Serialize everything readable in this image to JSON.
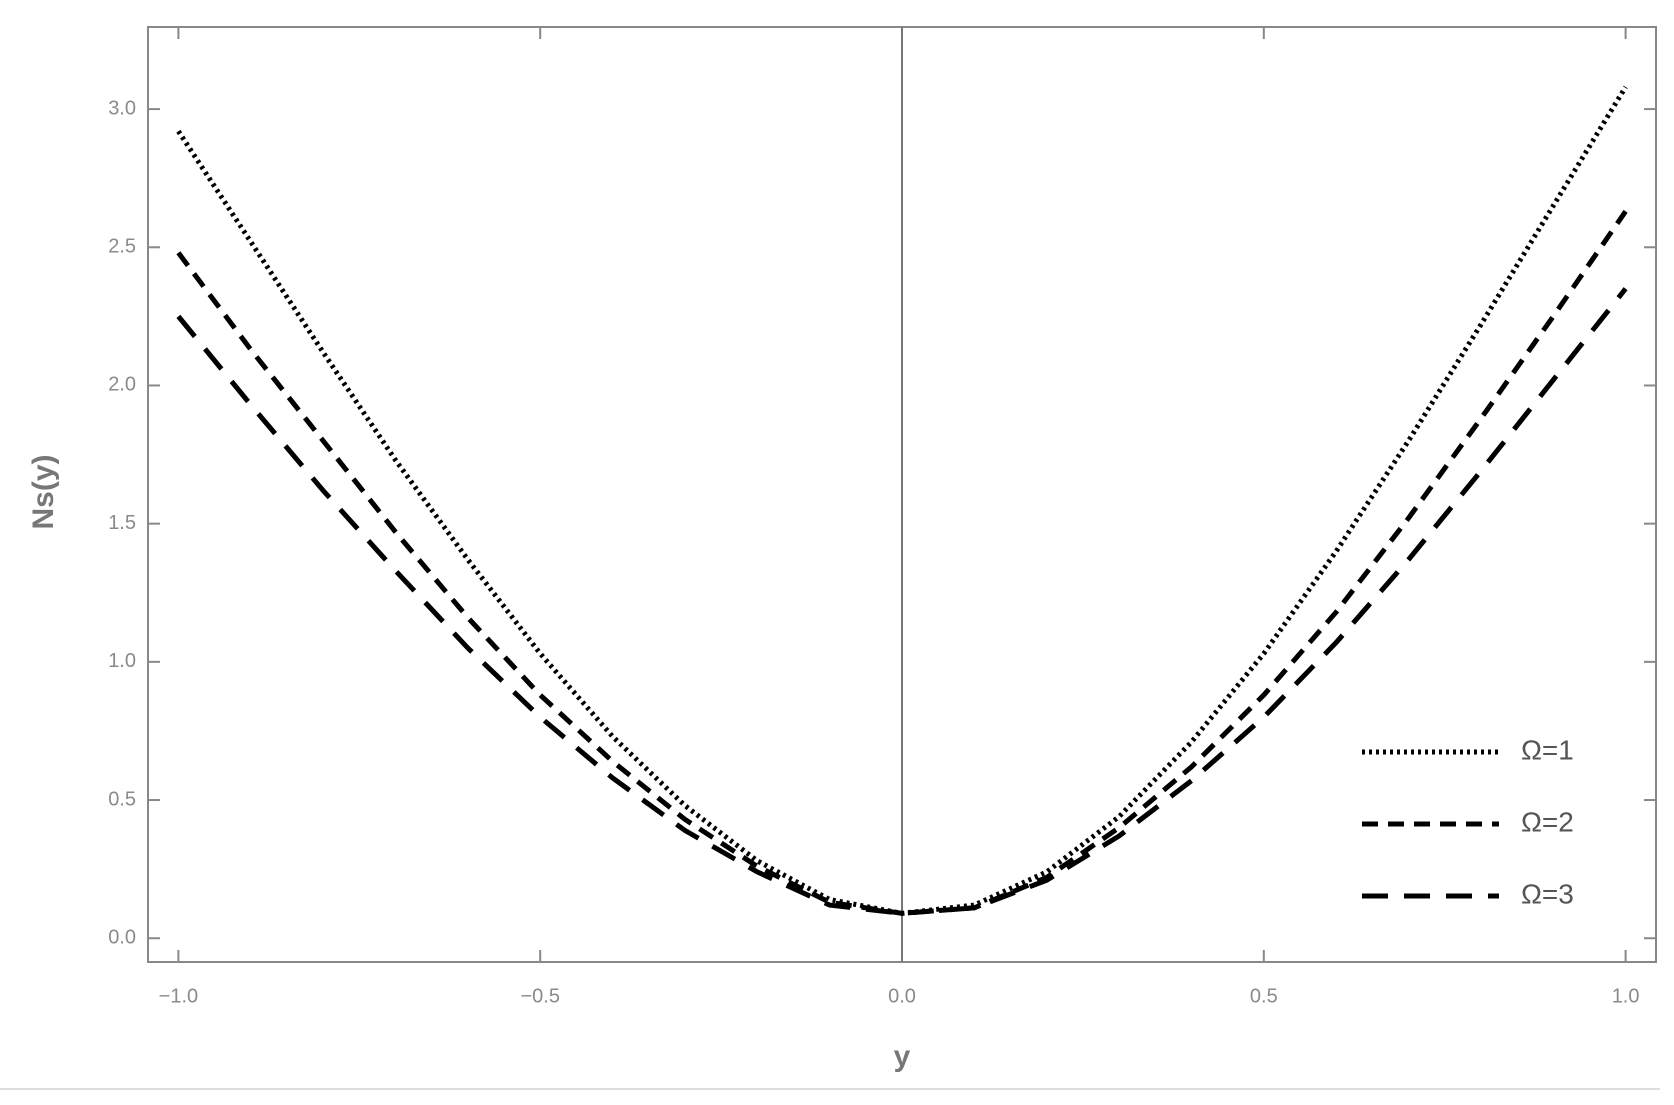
{
  "chart_data": {
    "type": "line",
    "x_label": "y",
    "y_label": "Ns(y)",
    "x": [
      -1.0,
      -0.9,
      -0.8,
      -0.7,
      -0.6,
      -0.5,
      -0.4,
      -0.3,
      -0.2,
      -0.1,
      0.0,
      0.1,
      0.2,
      0.3,
      0.4,
      0.5,
      0.6,
      0.7,
      0.8,
      0.9,
      1.0
    ],
    "series": [
      {
        "name": "Ω=1",
        "color": "#000000",
        "dash": "dotted",
        "values": [
          2.92,
          2.52,
          2.12,
          1.73,
          1.37,
          1.03,
          0.73,
          0.48,
          0.28,
          0.14,
          0.09,
          0.12,
          0.24,
          0.44,
          0.71,
          1.03,
          1.4,
          1.8,
          2.22,
          2.65,
          3.08
        ]
      },
      {
        "name": "Ω=2",
        "color": "#000000",
        "dash": "dashed",
        "values": [
          2.48,
          2.13,
          1.8,
          1.47,
          1.16,
          0.88,
          0.64,
          0.43,
          0.26,
          0.13,
          0.09,
          0.11,
          0.22,
          0.4,
          0.62,
          0.88,
          1.18,
          1.52,
          1.88,
          2.25,
          2.63
        ]
      },
      {
        "name": "Ω=3",
        "color": "#000000",
        "dash": "longdash",
        "values": [
          2.25,
          1.93,
          1.62,
          1.33,
          1.05,
          0.8,
          0.58,
          0.39,
          0.24,
          0.12,
          0.09,
          0.11,
          0.21,
          0.37,
          0.57,
          0.8,
          1.07,
          1.37,
          1.69,
          2.02,
          2.35
        ]
      }
    ],
    "xlim": [
      -1.042,
      1.042
    ],
    "ylim": [
      -0.086,
      3.297
    ],
    "xticks": [
      {
        "value": -1,
        "label": "−1.0"
      },
      {
        "value": -0.5,
        "label": "−0.5"
      },
      {
        "value": 0,
        "label": "0.0"
      },
      0.5,
      {
        "value": 1,
        "label": "1.0"
      }
    ],
    "yticks": [
      {
        "value": 0,
        "label": "0.0"
      },
      0.5,
      {
        "value": 1,
        "label": "1.0"
      },
      1.5,
      {
        "value": 2,
        "label": "2.0"
      },
      2.5,
      {
        "value": 3,
        "label": "3.0"
      }
    ],
    "legend": "lower right"
  }
}
